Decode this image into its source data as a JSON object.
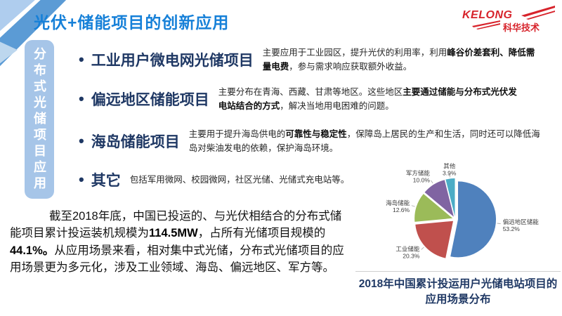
{
  "slide": {
    "title": "光伏+储能项目的创新应用",
    "logo": {
      "brand": "KELONG",
      "subtitle": "科华技术",
      "color": "#D7232B"
    },
    "sidebar_tab": "分布式光储项目应用",
    "bullets": [
      {
        "title": "工业用户微电网光储项目",
        "desc": [
          {
            "text": "主要应用于工业园区，提升光伏的利用率，利用",
            "bold": false
          },
          {
            "text": "峰谷价差套利、降低需量电费",
            "bold": true
          },
          {
            "text": "，参与需求响应获取额外收益。",
            "bold": false
          }
        ]
      },
      {
        "title": "偏远地区储能项目",
        "desc": [
          {
            "text": "主要分布在青海、西藏、甘肃等地区。这些地区",
            "bold": false
          },
          {
            "text": "主要通过储能与分布式光伏发电站结合的方式",
            "bold": true
          },
          {
            "text": "，解决当地用电困难的问题。",
            "bold": false
          }
        ]
      },
      {
        "title": "海岛储能项目",
        "desc": [
          {
            "text": "主要用于提升海岛供电的",
            "bold": false
          },
          {
            "text": "可靠性与稳定性",
            "bold": true
          },
          {
            "text": "，保障岛上居民的生产和生活，同时还可以降低海岛对柴油发电的依赖，保护海岛环境。",
            "bold": false
          }
        ]
      },
      {
        "title": "其它",
        "desc": [
          {
            "text": "包括军用微网、校园微网，社区光储、光储式充电站等。",
            "bold": false
          }
        ]
      }
    ],
    "summary": [
      {
        "text": "截至2018年底，中国已投运的、与光伏相结合的分布式储能项目累计投运装机规模为",
        "bold": false
      },
      {
        "text": "114.5MW",
        "bold": true
      },
      {
        "text": "，占所有光储项目规模的",
        "bold": false
      },
      {
        "text": "44.1%。",
        "bold": true
      },
      {
        "text": "从应用场景来看，相对集中式光储，分布式光储项目的应用场景更为多元化，涉及工业领域、海岛、偏远地区、军方等。",
        "bold": false
      }
    ],
    "chart_caption": "2018年中国累计投运用户光储电站项目的应用场景分布"
  },
  "chart_data": {
    "type": "pie",
    "title": "2018年中国累计投运用户光储电站项目的应用场景分布",
    "direction": "clockwise",
    "start_angle_deg": 0,
    "exploded": true,
    "legend_position": "none",
    "slices": [
      {
        "label": "偏远地区储能",
        "value": 53.2,
        "pct": "53.2%",
        "color": "#4F81BD"
      },
      {
        "label": "工业储能",
        "value": 20.3,
        "pct": "20.3%",
        "color": "#C0504D"
      },
      {
        "label": "海岛储能",
        "value": 12.6,
        "pct": "12.6%",
        "color": "#9BBB59"
      },
      {
        "label": "军方储能",
        "value": 10.0,
        "pct": "10.0%",
        "color": "#8064A2"
      },
      {
        "label": "其他",
        "value": 3.9,
        "pct": "3.9%",
        "color": "#4BACC6"
      }
    ]
  }
}
